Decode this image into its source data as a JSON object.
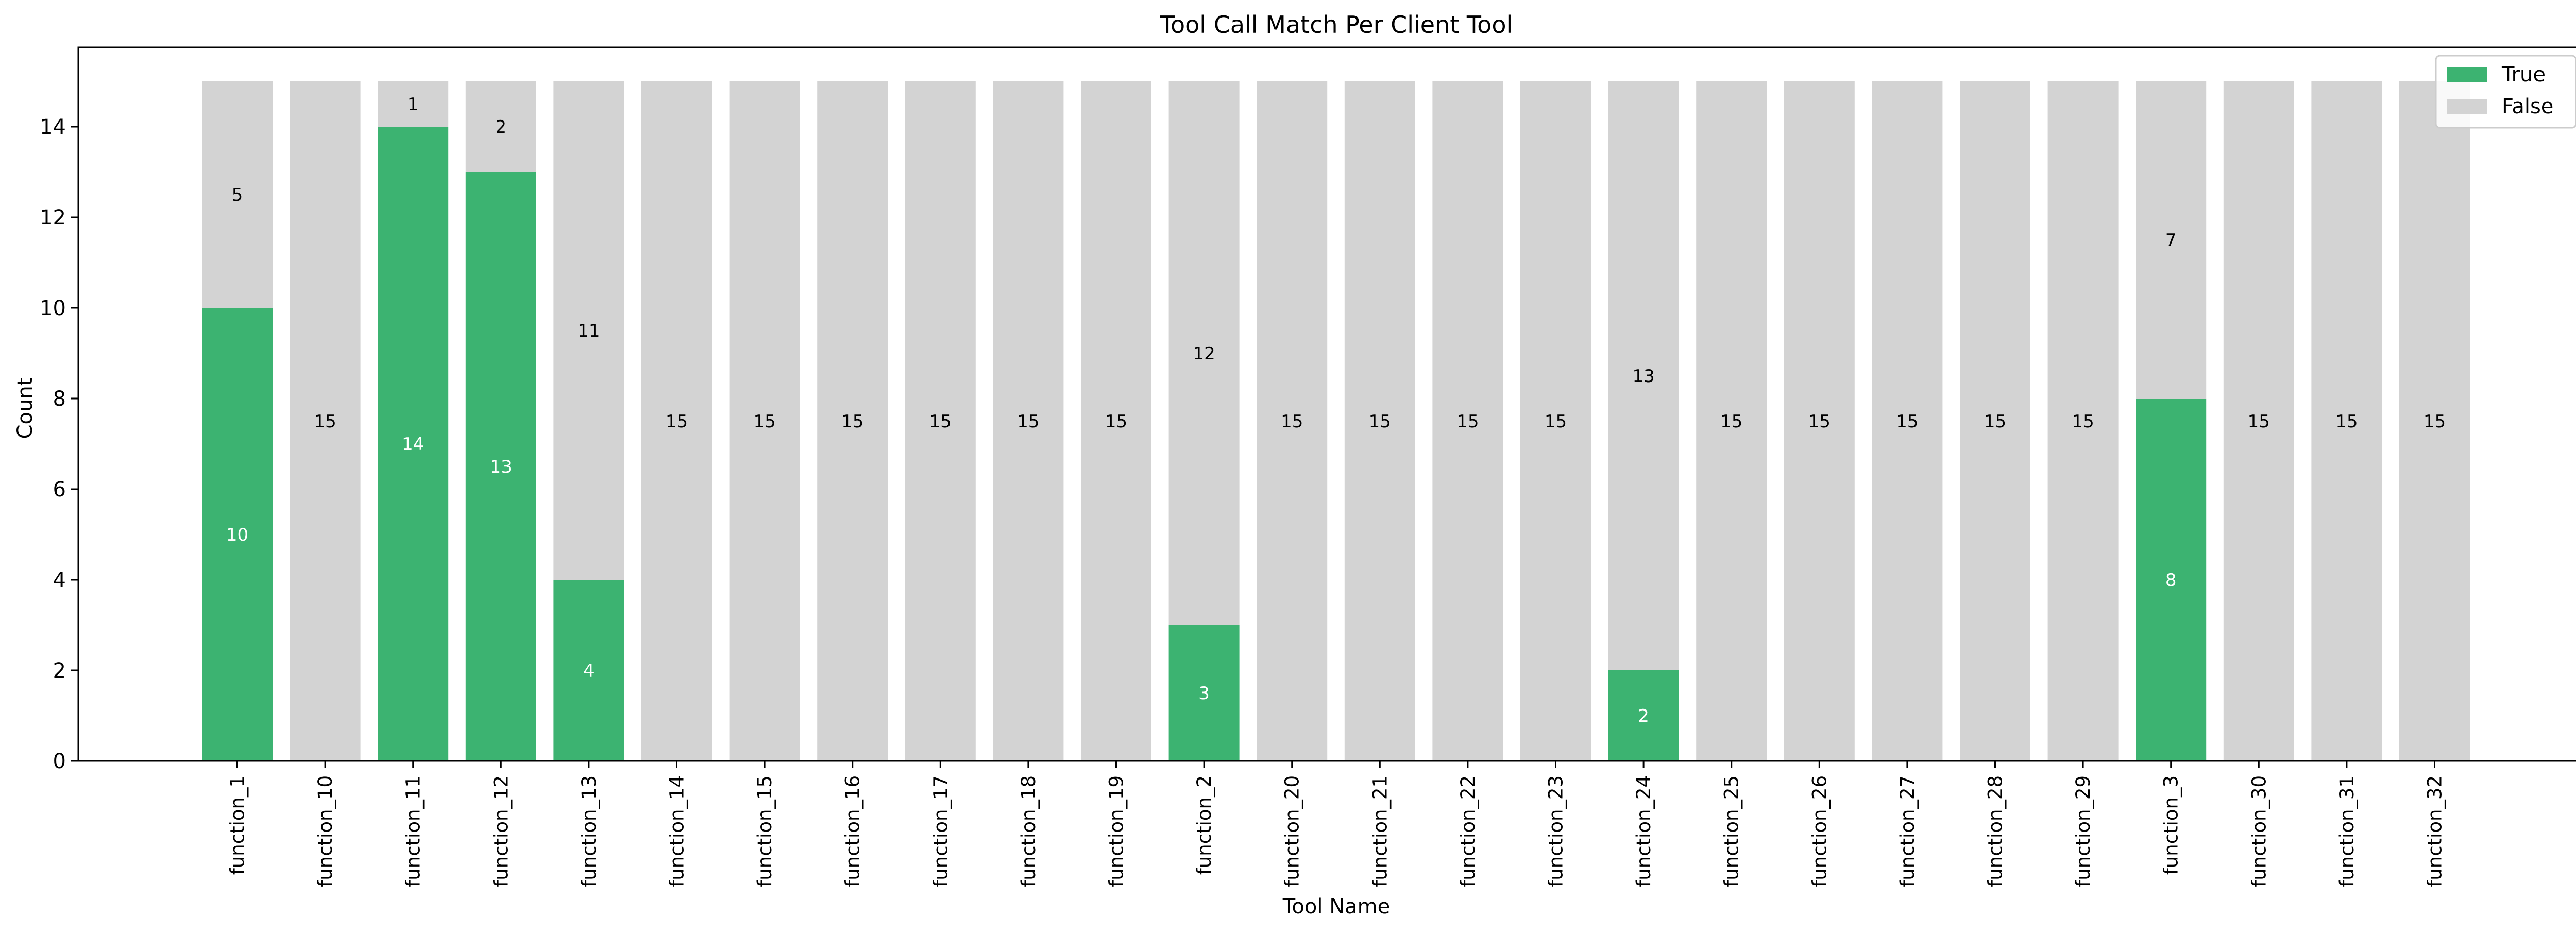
{
  "chart_data": {
    "type": "bar",
    "stacked": true,
    "title": "Tool Call Match Per Client Tool",
    "xlabel": "Tool Name",
    "ylabel": "Count",
    "ylim": [
      0,
      15.75
    ],
    "yticks": [
      0,
      2,
      4,
      6,
      8,
      10,
      12,
      14
    ],
    "grid": false,
    "legend_position": "top-right",
    "categories": [
      "function_1",
      "function_10",
      "function_11",
      "function_12",
      "function_13",
      "function_14",
      "function_15",
      "function_16",
      "function_17",
      "function_18",
      "function_19",
      "function_2",
      "function_20",
      "function_21",
      "function_22",
      "function_23",
      "function_24",
      "function_25",
      "function_26",
      "function_27",
      "function_28",
      "function_29",
      "function_3",
      "function_30",
      "function_31",
      "function_32"
    ],
    "series": [
      {
        "name": "True",
        "color": "#3cb371",
        "label_color": "#ffffff",
        "values": [
          10,
          0,
          14,
          13,
          4,
          0,
          0,
          0,
          0,
          0,
          0,
          3,
          0,
          0,
          0,
          0,
          2,
          0,
          0,
          0,
          0,
          0,
          8,
          0,
          0,
          0
        ]
      },
      {
        "name": "False",
        "color": "#d3d3d3",
        "label_color": "#000000",
        "values": [
          5,
          15,
          1,
          2,
          11,
          15,
          15,
          15,
          15,
          15,
          15,
          12,
          15,
          15,
          15,
          15,
          13,
          15,
          15,
          15,
          15,
          15,
          7,
          15,
          15,
          15
        ]
      }
    ]
  }
}
